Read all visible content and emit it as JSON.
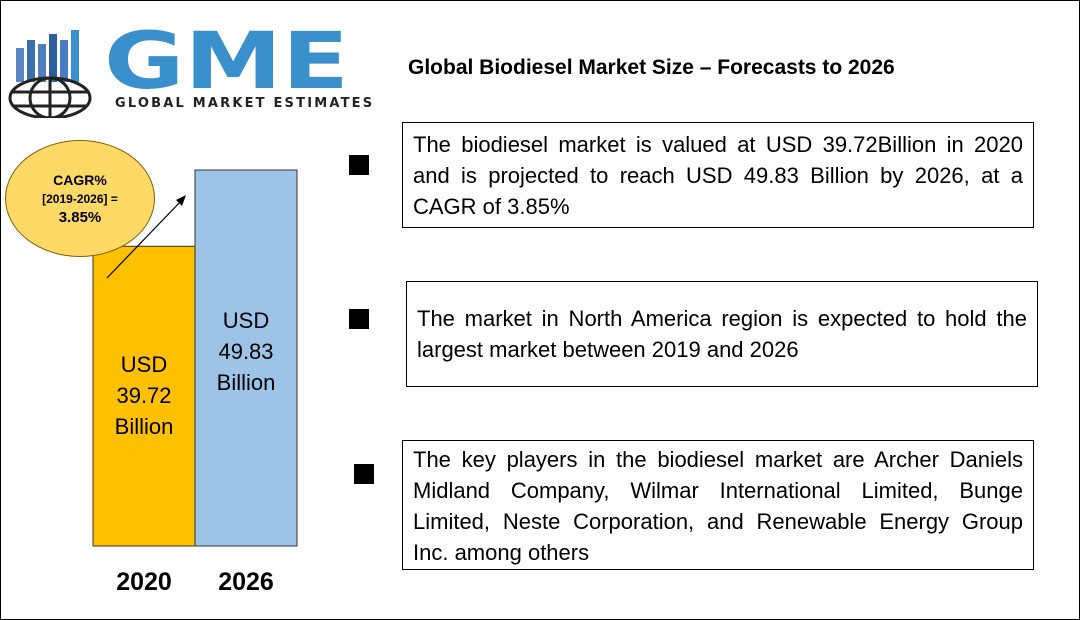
{
  "logo": {
    "text": "GME",
    "subtitle": "GLOBAL MARKET ESTIMATES",
    "brand_color": "#3a8fcd"
  },
  "title": "Global Biodiesel Market Size – Forecasts to 2026",
  "cagr": {
    "line1": "CAGR%",
    "line2": "[2019-2026] =",
    "line3": "3.85%"
  },
  "chart_data": {
    "type": "bar",
    "categories": [
      "2020",
      "2026"
    ],
    "values": [
      39.72,
      49.83
    ],
    "unit": "USD Billion",
    "bar_labels": [
      [
        "USD",
        "39.72",
        "Billion"
      ],
      [
        "USD",
        "49.83",
        "Billion"
      ]
    ],
    "colors": [
      "#ffc000",
      "#9dc3e6"
    ],
    "title": "",
    "xlabel": "",
    "ylabel": ""
  },
  "bullets": [
    "The biodiesel market is valued at USD 39.72Billion in 2020 and is projected to reach USD 49.83 Billion by 2026, at a CAGR of 3.85%",
    "The market in North America region is expected to hold the largest market between 2019 and 2026",
    "The key players in the biodiesel market are Archer Daniels Midland Company, Wilmar International Limited, Bunge Limited, Neste Corporation, and Renewable Energy Group Inc. among others"
  ]
}
